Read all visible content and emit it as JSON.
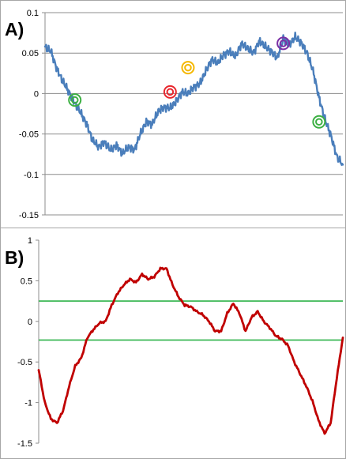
{
  "chart_data": [
    {
      "panel_label": "A)",
      "type": "line",
      "ylim": [
        -0.15,
        0.1
      ],
      "yticks": [
        "0.1",
        "0.05",
        "0",
        "-0.05",
        "-0.1",
        "-0.15"
      ],
      "ytick_values": [
        0.1,
        0.05,
        0,
        -0.05,
        -0.1,
        -0.15
      ],
      "grid": true,
      "line_color": "#4a7ebb",
      "series": [
        {
          "x": [
            0,
            0.02,
            0.04,
            0.06,
            0.08,
            0.1,
            0.12,
            0.14,
            0.16,
            0.18,
            0.2,
            0.22,
            0.24,
            0.26,
            0.28,
            0.3,
            0.32,
            0.34,
            0.36,
            0.38,
            0.4,
            0.42,
            0.44,
            0.46,
            0.48,
            0.5,
            0.52,
            0.54,
            0.56,
            0.58,
            0.6,
            0.62,
            0.64,
            0.66,
            0.68,
            0.7,
            0.72,
            0.74,
            0.76,
            0.78,
            0.8,
            0.82,
            0.84,
            0.86,
            0.88,
            0.9,
            0.92,
            0.94,
            0.96,
            0.98,
            1.0
          ],
          "values": [
            0.058,
            0.052,
            0.03,
            0.015,
            0.002,
            -0.012,
            -0.024,
            -0.038,
            -0.058,
            -0.066,
            -0.06,
            -0.07,
            -0.064,
            -0.074,
            -0.066,
            -0.07,
            -0.05,
            -0.035,
            -0.038,
            -0.022,
            -0.017,
            -0.018,
            -0.01,
            0.002,
            0.0,
            0.008,
            0.012,
            0.028,
            0.042,
            0.038,
            0.048,
            0.052,
            0.046,
            0.062,
            0.056,
            0.05,
            0.065,
            0.058,
            0.052,
            0.044,
            0.068,
            0.06,
            0.07,
            0.063,
            0.05,
            0.028,
            -0.005,
            -0.032,
            -0.052,
            -0.078,
            -0.088
          ]
        }
      ],
      "markers": [
        {
          "x": 0.1,
          "y": -0.008,
          "color": "#3cb043"
        },
        {
          "x": 0.42,
          "y": 0.002,
          "color": "#e8262d"
        },
        {
          "x": 0.48,
          "y": 0.032,
          "color": "#f5b800"
        },
        {
          "x": 0.8,
          "y": 0.062,
          "color": "#7b2fa5"
        },
        {
          "x": 0.92,
          "y": -0.035,
          "color": "#3cb043"
        }
      ]
    },
    {
      "panel_label": "B)",
      "type": "line",
      "ylim": [
        -1.5,
        1
      ],
      "yticks": [
        "1",
        "0.5",
        "0",
        "-0.5",
        "-1",
        "-1.5"
      ],
      "ytick_values": [
        1,
        0.5,
        0,
        -0.5,
        -1,
        -1.5
      ],
      "grid": false,
      "line_color": "#c00000",
      "hlines": [
        {
          "y": 0.25,
          "color": "#2fb34a"
        },
        {
          "y": -0.23,
          "color": "#2fb34a"
        }
      ],
      "series": [
        {
          "x": [
            0,
            0.02,
            0.04,
            0.06,
            0.08,
            0.1,
            0.12,
            0.14,
            0.16,
            0.18,
            0.2,
            0.22,
            0.24,
            0.26,
            0.28,
            0.3,
            0.32,
            0.34,
            0.36,
            0.38,
            0.4,
            0.42,
            0.44,
            0.46,
            0.48,
            0.5,
            0.52,
            0.54,
            0.56,
            0.58,
            0.6,
            0.62,
            0.64,
            0.66,
            0.68,
            0.7,
            0.72,
            0.74,
            0.76,
            0.78,
            0.8,
            0.82,
            0.84,
            0.86,
            0.88,
            0.9,
            0.92,
            0.94,
            0.96,
            0.98,
            1.0
          ],
          "values": [
            -0.6,
            -1.0,
            -1.2,
            -1.25,
            -1.1,
            -0.8,
            -0.55,
            -0.45,
            -0.2,
            -0.1,
            -0.02,
            0.0,
            0.2,
            0.35,
            0.45,
            0.52,
            0.48,
            0.58,
            0.52,
            0.55,
            0.65,
            0.65,
            0.45,
            0.3,
            0.2,
            0.18,
            0.12,
            0.08,
            0.0,
            -0.12,
            -0.12,
            0.1,
            0.22,
            0.1,
            -0.12,
            0.05,
            0.12,
            0.0,
            -0.08,
            -0.18,
            -0.22,
            -0.3,
            -0.5,
            -0.65,
            -0.8,
            -0.98,
            -1.22,
            -1.38,
            -1.25,
            -0.7,
            -0.2
          ]
        }
      ]
    }
  ]
}
